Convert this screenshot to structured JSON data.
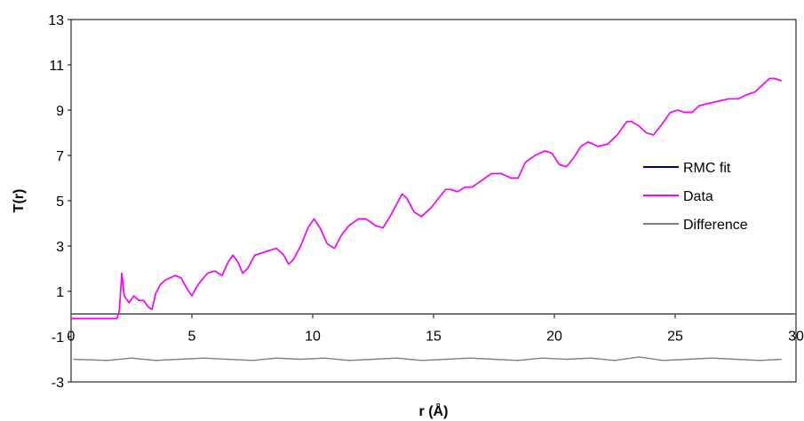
{
  "chart_data": {
    "type": "line",
    "title": "",
    "xlabel": "r (Å)",
    "ylabel": "T(r)",
    "xlim": [
      0,
      30
    ],
    "ylim": [
      -3,
      13
    ],
    "xticks": [
      0,
      5,
      10,
      15,
      20,
      25,
      30
    ],
    "yticks": [
      -3,
      -1,
      1,
      3,
      5,
      7,
      9,
      11,
      13
    ],
    "grid": false,
    "legend": "right",
    "colors": {
      "rmc": "#000080",
      "data": "#ff00ff",
      "difference": "#808080",
      "axis": "#000000"
    },
    "series": [
      {
        "name": "RMC fit",
        "x": [
          0,
          1.9,
          2.0,
          2.1,
          2.2,
          2.4,
          2.6,
          2.8,
          3.0,
          3.2,
          3.35,
          3.5,
          3.7,
          3.9,
          4.1,
          4.3,
          4.55,
          4.8,
          5.0,
          5.2,
          5.4,
          5.65,
          5.95,
          6.25,
          6.5,
          6.7,
          6.9,
          7.1,
          7.3,
          7.6,
          7.9,
          8.2,
          8.5,
          8.8,
          9.0,
          9.2,
          9.5,
          9.8,
          10.05,
          10.3,
          10.6,
          10.9,
          11.2,
          11.5,
          11.9,
          12.2,
          12.6,
          12.9,
          13.2,
          13.5,
          13.7,
          13.9,
          14.2,
          14.5,
          14.9,
          15.2,
          15.5,
          15.7,
          16.0,
          16.3,
          16.6,
          17.0,
          17.4,
          17.8,
          18.2,
          18.5,
          18.8,
          19.2,
          19.6,
          19.9,
          20.2,
          20.5,
          20.8,
          21.1,
          21.4,
          21.8,
          22.2,
          22.6,
          23.0,
          23.2,
          23.5,
          23.8,
          24.1,
          24.4,
          24.8,
          25.1,
          25.4,
          25.7,
          26.0,
          26.4,
          26.8,
          27.2,
          27.6,
          28.0,
          28.3,
          28.6,
          28.9,
          29.1,
          29.4
        ],
        "y": [
          -0.2,
          -0.2,
          0.2,
          1.8,
          0.8,
          0.5,
          0.8,
          0.6,
          0.6,
          0.3,
          0.2,
          0.9,
          1.3,
          1.5,
          1.6,
          1.7,
          1.6,
          1.1,
          0.8,
          1.2,
          1.5,
          1.8,
          1.9,
          1.7,
          2.3,
          2.6,
          2.3,
          1.8,
          2.0,
          2.6,
          2.7,
          2.8,
          2.9,
          2.6,
          2.2,
          2.4,
          3.0,
          3.8,
          4.2,
          3.8,
          3.1,
          2.9,
          3.5,
          3.9,
          4.2,
          4.2,
          3.9,
          3.8,
          4.3,
          4.9,
          5.3,
          5.1,
          4.5,
          4.3,
          4.7,
          5.1,
          5.5,
          5.5,
          5.4,
          5.6,
          5.6,
          5.9,
          6.2,
          6.2,
          6.0,
          6.0,
          6.7,
          7.0,
          7.2,
          7.1,
          6.6,
          6.5,
          6.9,
          7.4,
          7.6,
          7.4,
          7.5,
          7.9,
          8.5,
          8.5,
          8.3,
          8.0,
          7.9,
          8.3,
          8.9,
          9.0,
          8.9,
          8.9,
          9.2,
          9.3,
          9.4,
          9.5,
          9.5,
          9.7,
          9.8,
          10.1,
          10.4,
          10.4,
          10.3
        ]
      },
      {
        "name": "Data",
        "x": [
          0,
          1.9,
          2.0,
          2.1,
          2.2,
          2.4,
          2.6,
          2.8,
          3.0,
          3.2,
          3.35,
          3.5,
          3.7,
          3.9,
          4.1,
          4.3,
          4.55,
          4.8,
          5.0,
          5.2,
          5.4,
          5.65,
          5.95,
          6.25,
          6.5,
          6.7,
          6.9,
          7.1,
          7.3,
          7.6,
          7.9,
          8.2,
          8.5,
          8.8,
          9.0,
          9.2,
          9.5,
          9.8,
          10.05,
          10.3,
          10.6,
          10.9,
          11.2,
          11.5,
          11.9,
          12.2,
          12.6,
          12.9,
          13.2,
          13.5,
          13.7,
          13.9,
          14.2,
          14.5,
          14.9,
          15.2,
          15.5,
          15.7,
          16.0,
          16.3,
          16.6,
          17.0,
          17.4,
          17.8,
          18.2,
          18.5,
          18.8,
          19.2,
          19.6,
          19.9,
          20.2,
          20.5,
          20.8,
          21.1,
          21.4,
          21.8,
          22.2,
          22.6,
          23.0,
          23.2,
          23.5,
          23.8,
          24.1,
          24.4,
          24.8,
          25.1,
          25.4,
          25.7,
          26.0,
          26.4,
          26.8,
          27.2,
          27.6,
          28.0,
          28.3,
          28.6,
          28.9,
          29.1,
          29.4
        ],
        "y": [
          -0.2,
          -0.2,
          0.2,
          1.8,
          0.8,
          0.5,
          0.8,
          0.6,
          0.6,
          0.3,
          0.2,
          0.9,
          1.3,
          1.5,
          1.6,
          1.7,
          1.6,
          1.1,
          0.8,
          1.2,
          1.5,
          1.8,
          1.9,
          1.7,
          2.3,
          2.6,
          2.3,
          1.8,
          2.0,
          2.6,
          2.7,
          2.8,
          2.9,
          2.6,
          2.2,
          2.4,
          3.0,
          3.8,
          4.2,
          3.8,
          3.1,
          2.9,
          3.5,
          3.9,
          4.2,
          4.2,
          3.9,
          3.8,
          4.3,
          4.9,
          5.3,
          5.1,
          4.5,
          4.3,
          4.7,
          5.1,
          5.5,
          5.5,
          5.4,
          5.6,
          5.6,
          5.9,
          6.2,
          6.2,
          6.0,
          6.0,
          6.7,
          7.0,
          7.2,
          7.1,
          6.6,
          6.5,
          6.9,
          7.4,
          7.6,
          7.4,
          7.5,
          7.9,
          8.5,
          8.5,
          8.3,
          8.0,
          7.9,
          8.3,
          8.9,
          9.0,
          8.9,
          8.9,
          9.2,
          9.3,
          9.4,
          9.5,
          9.5,
          9.7,
          9.8,
          10.1,
          10.4,
          10.4,
          10.3
        ]
      },
      {
        "name": "Difference",
        "x": [
          0.1,
          1.5,
          2.5,
          3.5,
          4.5,
          5.5,
          6.5,
          7.5,
          8.5,
          9.5,
          10.5,
          11.5,
          12.5,
          13.5,
          14.5,
          15.5,
          16.5,
          17.5,
          18.5,
          19.5,
          20.5,
          21.5,
          22.5,
          23.5,
          24.5,
          25.5,
          26.5,
          27.5,
          28.5,
          29.4
        ],
        "y": [
          -2.0,
          -2.05,
          -1.95,
          -2.05,
          -2.0,
          -1.95,
          -2.0,
          -2.05,
          -1.95,
          -2.0,
          -1.95,
          -2.05,
          -2.0,
          -1.95,
          -2.05,
          -2.0,
          -1.95,
          -2.0,
          -2.05,
          -1.95,
          -2.0,
          -1.95,
          -2.05,
          -1.9,
          -2.05,
          -2.0,
          -1.95,
          -2.0,
          -2.05,
          -2.0
        ]
      }
    ]
  }
}
